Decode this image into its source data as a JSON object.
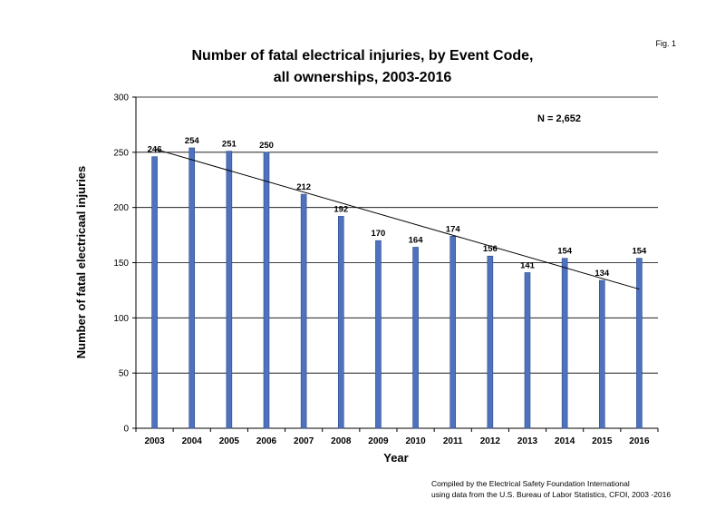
{
  "figure": {
    "label": "Fig. 1",
    "title_line1": "Number of fatal electrical injuries, by Event Code,",
    "title_line2": "all ownerships, 2003-2016",
    "source_line1": "Compiled by the Electrical Safety Foundation International",
    "source_line2": "using data from the U.S. Bureau of Labor Statistics, CFOI, 2003 -2016"
  },
  "chart_data": {
    "type": "bar",
    "title": "Number of fatal electrical injuries, by Event Code, all ownerships, 2003-2016",
    "xlabel": "Year",
    "ylabel": "Number of fatal electricaal injuries",
    "categories": [
      "2003",
      "2004",
      "2005",
      "2006",
      "2007",
      "2008",
      "2009",
      "2010",
      "2011",
      "2012",
      "2013",
      "2014",
      "2015",
      "2016"
    ],
    "values": [
      246,
      254,
      251,
      250,
      212,
      192,
      170,
      164,
      174,
      156,
      141,
      154,
      134,
      154
    ],
    "ylim": [
      0,
      300
    ],
    "yticks": [
      0,
      50,
      100,
      150,
      200,
      250,
      300
    ],
    "grid": true,
    "trendline": {
      "type": "linear",
      "start": 253,
      "end": 126
    },
    "annotation": "N = 2,652",
    "bar_color": "#4f72be",
    "bar_edge_color": "#2c4a8a",
    "legend": "none"
  }
}
